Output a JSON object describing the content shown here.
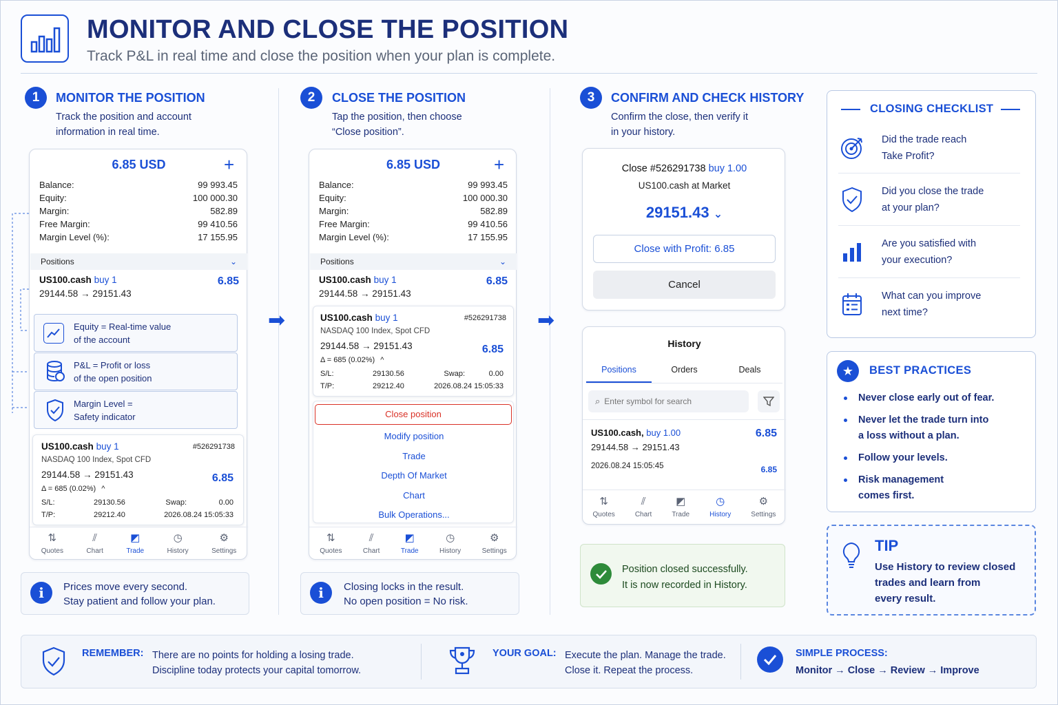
{
  "header": {
    "title": "MONITOR AND CLOSE THE POSITION",
    "subtitle": "Track P&L in real time and close the position when your plan is complete."
  },
  "steps": [
    {
      "num": "1",
      "title": "MONITOR THE POSITION",
      "desc1": "Track the position and account",
      "desc2": "information in real time."
    },
    {
      "num": "2",
      "title": "CLOSE THE POSITION",
      "desc1": "Tap the position, then choose",
      "desc2": "“Close position”."
    },
    {
      "num": "3",
      "title": "CONFIRM AND CHECK HISTORY",
      "desc1": "Confirm the close, then verify it",
      "desc2": "in your history."
    }
  ],
  "account": {
    "balance_title": "6.85 USD",
    "plus": "+",
    "rows": [
      {
        "label": "Balance:",
        "value": "99 993.45"
      },
      {
        "label": "Equity:",
        "value": "100 000.30"
      },
      {
        "label": "Margin:",
        "value": "582.89"
      },
      {
        "label": "Free Margin:",
        "value": "99 410.56"
      },
      {
        "label": "Margin Level (%):",
        "value": "17 155.95"
      }
    ]
  },
  "positions_label": "Positions",
  "position": {
    "symbol": "US100.cash",
    "side": "buy 1",
    "prices": "29144.58 → 29151.43",
    "pnl": "6.85"
  },
  "detail": {
    "symbol": "US100.cash",
    "side": "buy 1",
    "ticket": "#526291738",
    "desc": "NASDAQ 100 Index, Spot CFD",
    "prices": "29144.58 → 29151.43",
    "pnl": "6.85",
    "delta": "Δ = 685 (0.02%)",
    "caret": "^",
    "sl_label": "S/L:",
    "sl": "29130.56",
    "tp_label": "T/P:",
    "tp": "29212.40",
    "swap_label": "Swap:",
    "swap": "0.00",
    "time": "2026.08.24 15:05:33"
  },
  "explain": [
    {
      "line1": "Equity = Real-time value",
      "line2": "of the account",
      "icon": "chart-line-icon"
    },
    {
      "line1": "P&L = Profit or loss",
      "line2": "of the open position",
      "icon": "coins-icon"
    },
    {
      "line1": "Margin Level =",
      "line2": "Safety indicator",
      "icon": "shield-check-icon"
    }
  ],
  "tabs": [
    {
      "label": "Quotes",
      "glyph": "⇅",
      "icon": "quotes-icon"
    },
    {
      "label": "Chart",
      "glyph": "⫽",
      "icon": "candles-icon"
    },
    {
      "label": "Trade",
      "glyph": "◩",
      "icon": "trade-icon"
    },
    {
      "label": "History",
      "glyph": "◷",
      "icon": "history-icon"
    },
    {
      "label": "Settings",
      "glyph": "⚙",
      "icon": "settings-icon"
    }
  ],
  "menu": {
    "close": "Close position",
    "items": [
      "Modify position",
      "Trade",
      "Depth Of Market",
      "Chart",
      "Bulk Operations..."
    ]
  },
  "notes": [
    {
      "line1": "Prices move every second.",
      "line2": "Stay patient and follow your plan."
    },
    {
      "line1": "Closing locks in the result.",
      "line2": "No open position = No risk."
    }
  ],
  "confirm": {
    "title_prefix": "Close #526291738",
    "title_side": "buy 1.00",
    "subtitle": "US100.cash at Market",
    "price": "29151.43",
    "caret": "⌄",
    "profit_btn": "Close with Profit: 6.85",
    "cancel_btn": "Cancel"
  },
  "history": {
    "title": "History",
    "tabs": [
      "Positions",
      "Orders",
      "Deals"
    ],
    "search_placeholder": "Enter symbol for search",
    "symbol": "US100.cash,",
    "side": "buy 1.00",
    "prices": "29144.58 → 29151.43",
    "pnl": "6.85",
    "time": "2026.08.24 15:05:45",
    "pnl2": "6.85"
  },
  "success": {
    "line1": "Position closed successfully.",
    "line2": "It is now recorded in History."
  },
  "checklist": {
    "title": "CLOSING CHECKLIST",
    "items": [
      {
        "line1": "Did the trade reach",
        "line2": "Take Profit?",
        "icon": "target-icon"
      },
      {
        "line1": "Did you close the trade",
        "line2": "at your plan?",
        "icon": "shield-check-icon"
      },
      {
        "line1": "Are you satisfied with",
        "line2": "your execution?",
        "icon": "bar-chart-icon"
      },
      {
        "line1": "What can you improve",
        "line2": "next time?",
        "icon": "calendar-icon"
      }
    ]
  },
  "best": {
    "title": "BEST PRACTICES",
    "items": [
      {
        "line1": "Never close early out of fear.",
        "line2": ""
      },
      {
        "line1": "Never let the trade turn into",
        "line2": "a loss without a plan."
      },
      {
        "line1": "Follow your levels.",
        "line2": ""
      },
      {
        "line1": "Risk management",
        "line2": "comes first."
      }
    ]
  },
  "tip": {
    "title": "TIP",
    "line1": "Use History to review closed",
    "line2": "trades and learn from",
    "line3": "every result."
  },
  "footer": {
    "remember_head": "REMEMBER:",
    "remember1": "There are no points for holding a losing trade.",
    "remember2": "Discipline today protects your capital tomorrow.",
    "goal_head": "YOUR GOAL:",
    "goal1": "Execute the plan. Manage the trade.",
    "goal2": "Close it. Repeat the process.",
    "process_head": "SIMPLE PROCESS:",
    "process": "Monitor → Close → Review → Improve"
  },
  "colors": {
    "accent": "#1a4fd6",
    "navy": "#1c2f7a",
    "danger": "#d93025",
    "success": "#2e8b3a"
  }
}
